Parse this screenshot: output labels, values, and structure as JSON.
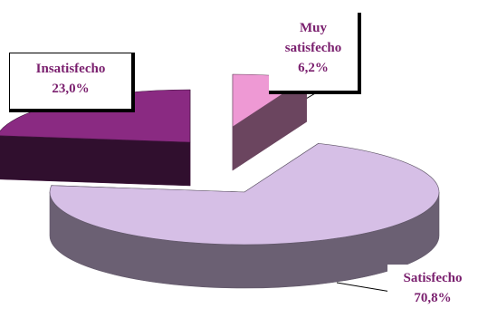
{
  "chart_data": {
    "type": "pie",
    "style": "3d-exploded",
    "slices": [
      {
        "label": "Muy satisfecho",
        "display": [
          "Muy",
          "satisfecho"
        ],
        "value": 6.2,
        "value_label": "6,2%",
        "color": "#ee99d4"
      },
      {
        "label": "Satisfecho",
        "display": [
          "Satisfecho"
        ],
        "value": 70.8,
        "value_label": "70,8%",
        "color": "#d6bfe6"
      },
      {
        "label": "Insatisfecho",
        "display": [
          "Insatisfecho"
        ],
        "value": 23.0,
        "value_label": "23,0%",
        "color": "#8a2a82"
      }
    ]
  }
}
